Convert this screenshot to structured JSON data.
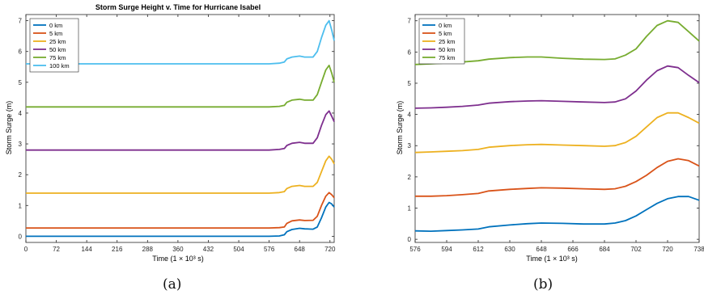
{
  "captions": [
    "(a)",
    "(b)"
  ],
  "chart_data": [
    {
      "type": "line",
      "title": "Storm Surge Height v. Time for Hurricane Isabel",
      "xlabel": "Time (1 × 10³ s)",
      "ylabel": "Storm Surge (m)",
      "xlim": [
        0,
        730
      ],
      "ylim": [
        -0.2,
        7.2
      ],
      "xticks": [
        0,
        72,
        144,
        216,
        288,
        360,
        432,
        504,
        576,
        648,
        720
      ],
      "yticks": [
        0,
        1,
        2,
        3,
        4,
        5,
        6,
        7
      ],
      "grid": false,
      "legend_position": "top-left",
      "series": [
        {
          "name": "0 km",
          "color": "#0072BD",
          "points": [
            [
              0,
              0
            ],
            [
              72,
              0
            ],
            [
              144,
              0
            ],
            [
              216,
              0
            ],
            [
              288,
              0
            ],
            [
              360,
              0
            ],
            [
              432,
              0
            ],
            [
              504,
              0
            ],
            [
              576,
              0
            ],
            [
              600,
              0.01
            ],
            [
              612,
              0.05
            ],
            [
              618,
              0.15
            ],
            [
              630,
              0.22
            ],
            [
              648,
              0.26
            ],
            [
              660,
              0.24
            ],
            [
              680,
              0.23
            ],
            [
              690,
              0.3
            ],
            [
              700,
              0.6
            ],
            [
              710,
              0.95
            ],
            [
              718,
              1.1
            ],
            [
              724,
              1.05
            ],
            [
              730,
              0.95
            ]
          ]
        },
        {
          "name": "5 km",
          "color": "#D95319",
          "points": [
            [
              0,
              0.27
            ],
            [
              72,
              0.27
            ],
            [
              144,
              0.27
            ],
            [
              216,
              0.27
            ],
            [
              288,
              0.27
            ],
            [
              360,
              0.27
            ],
            [
              432,
              0.27
            ],
            [
              504,
              0.27
            ],
            [
              576,
              0.27
            ],
            [
              600,
              0.28
            ],
            [
              612,
              0.3
            ],
            [
              618,
              0.42
            ],
            [
              630,
              0.5
            ],
            [
              648,
              0.53
            ],
            [
              660,
              0.51
            ],
            [
              680,
              0.52
            ],
            [
              690,
              0.65
            ],
            [
              700,
              1.0
            ],
            [
              710,
              1.3
            ],
            [
              718,
              1.42
            ],
            [
              724,
              1.35
            ],
            [
              730,
              1.25
            ]
          ]
        },
        {
          "name": "25 km",
          "color": "#EDB120",
          "points": [
            [
              0,
              1.4
            ],
            [
              72,
              1.4
            ],
            [
              144,
              1.4
            ],
            [
              216,
              1.4
            ],
            [
              288,
              1.4
            ],
            [
              360,
              1.4
            ],
            [
              432,
              1.4
            ],
            [
              504,
              1.4
            ],
            [
              576,
              1.4
            ],
            [
              600,
              1.42
            ],
            [
              612,
              1.45
            ],
            [
              618,
              1.55
            ],
            [
              630,
              1.62
            ],
            [
              648,
              1.65
            ],
            [
              660,
              1.62
            ],
            [
              680,
              1.62
            ],
            [
              690,
              1.75
            ],
            [
              700,
              2.1
            ],
            [
              710,
              2.45
            ],
            [
              718,
              2.6
            ],
            [
              724,
              2.5
            ],
            [
              730,
              2.35
            ]
          ]
        },
        {
          "name": "50 km",
          "color": "#7E2F8E",
          "points": [
            [
              0,
              2.8
            ],
            [
              72,
              2.8
            ],
            [
              144,
              2.8
            ],
            [
              216,
              2.8
            ],
            [
              288,
              2.8
            ],
            [
              360,
              2.8
            ],
            [
              432,
              2.8
            ],
            [
              504,
              2.8
            ],
            [
              576,
              2.8
            ],
            [
              600,
              2.82
            ],
            [
              612,
              2.85
            ],
            [
              618,
              2.95
            ],
            [
              630,
              3.02
            ],
            [
              648,
              3.05
            ],
            [
              660,
              3.02
            ],
            [
              680,
              3.02
            ],
            [
              690,
              3.2
            ],
            [
              700,
              3.6
            ],
            [
              710,
              3.95
            ],
            [
              718,
              4.07
            ],
            [
              724,
              3.9
            ],
            [
              730,
              3.72
            ]
          ]
        },
        {
          "name": "75 km",
          "color": "#77AC30",
          "points": [
            [
              0,
              4.2
            ],
            [
              72,
              4.2
            ],
            [
              144,
              4.2
            ],
            [
              216,
              4.2
            ],
            [
              288,
              4.2
            ],
            [
              360,
              4.2
            ],
            [
              432,
              4.2
            ],
            [
              504,
              4.2
            ],
            [
              576,
              4.2
            ],
            [
              600,
              4.22
            ],
            [
              612,
              4.25
            ],
            [
              618,
              4.35
            ],
            [
              630,
              4.42
            ],
            [
              648,
              4.45
            ],
            [
              660,
              4.42
            ],
            [
              680,
              4.42
            ],
            [
              690,
              4.6
            ],
            [
              700,
              5.0
            ],
            [
              710,
              5.4
            ],
            [
              718,
              5.55
            ],
            [
              724,
              5.3
            ],
            [
              730,
              5.0
            ]
          ]
        },
        {
          "name": "100 km",
          "color": "#4DBEEE",
          "points": [
            [
              0,
              5.6
            ],
            [
              72,
              5.6
            ],
            [
              144,
              5.6
            ],
            [
              216,
              5.6
            ],
            [
              288,
              5.6
            ],
            [
              360,
              5.6
            ],
            [
              432,
              5.6
            ],
            [
              504,
              5.6
            ],
            [
              576,
              5.6
            ],
            [
              600,
              5.62
            ],
            [
              612,
              5.66
            ],
            [
              618,
              5.76
            ],
            [
              630,
              5.82
            ],
            [
              648,
              5.85
            ],
            [
              660,
              5.82
            ],
            [
              680,
              5.82
            ],
            [
              690,
              6.0
            ],
            [
              700,
              6.45
            ],
            [
              710,
              6.85
            ],
            [
              718,
              7.0
            ],
            [
              724,
              6.7
            ],
            [
              730,
              6.35
            ]
          ]
        }
      ]
    },
    {
      "type": "line",
      "title": "",
      "xlabel": "Time (1 × 10³ s)",
      "ylabel": "Storm Surge (m)",
      "xlim": [
        576,
        738
      ],
      "ylim": [
        -0.1,
        7.2
      ],
      "xticks": [
        576,
        594,
        612,
        630,
        648,
        666,
        684,
        702,
        720,
        738
      ],
      "yticks": [
        0,
        1,
        2,
        3,
        4,
        5,
        6,
        7
      ],
      "grid": false,
      "legend_position": "top-left",
      "series": [
        {
          "name": "0 km",
          "color": "#0072BD",
          "points": [
            [
              576,
              0.27
            ],
            [
              585,
              0.26
            ],
            [
              594,
              0.28
            ],
            [
              603,
              0.3
            ],
            [
              612,
              0.33
            ],
            [
              618,
              0.4
            ],
            [
              630,
              0.46
            ],
            [
              640,
              0.5
            ],
            [
              648,
              0.52
            ],
            [
              660,
              0.51
            ],
            [
              672,
              0.49
            ],
            [
              684,
              0.49
            ],
            [
              690,
              0.52
            ],
            [
              696,
              0.6
            ],
            [
              702,
              0.75
            ],
            [
              708,
              0.95
            ],
            [
              714,
              1.15
            ],
            [
              720,
              1.3
            ],
            [
              726,
              1.37
            ],
            [
              732,
              1.37
            ],
            [
              738,
              1.25
            ]
          ]
        },
        {
          "name": "5 km",
          "color": "#D95319",
          "points": [
            [
              576,
              1.38
            ],
            [
              585,
              1.38
            ],
            [
              594,
              1.4
            ],
            [
              603,
              1.43
            ],
            [
              612,
              1.47
            ],
            [
              618,
              1.55
            ],
            [
              630,
              1.6
            ],
            [
              640,
              1.63
            ],
            [
              648,
              1.65
            ],
            [
              660,
              1.64
            ],
            [
              672,
              1.62
            ],
            [
              684,
              1.6
            ],
            [
              690,
              1.62
            ],
            [
              696,
              1.7
            ],
            [
              702,
              1.85
            ],
            [
              708,
              2.05
            ],
            [
              714,
              2.3
            ],
            [
              720,
              2.5
            ],
            [
              726,
              2.58
            ],
            [
              732,
              2.52
            ],
            [
              738,
              2.35
            ]
          ]
        },
        {
          "name": "25 km",
          "color": "#EDB120",
          "points": [
            [
              576,
              2.78
            ],
            [
              585,
              2.8
            ],
            [
              594,
              2.82
            ],
            [
              603,
              2.84
            ],
            [
              612,
              2.88
            ],
            [
              618,
              2.95
            ],
            [
              630,
              3.0
            ],
            [
              640,
              3.03
            ],
            [
              648,
              3.04
            ],
            [
              660,
              3.02
            ],
            [
              672,
              3.0
            ],
            [
              684,
              2.98
            ],
            [
              690,
              3.0
            ],
            [
              696,
              3.1
            ],
            [
              702,
              3.3
            ],
            [
              708,
              3.6
            ],
            [
              714,
              3.9
            ],
            [
              720,
              4.05
            ],
            [
              726,
              4.05
            ],
            [
              732,
              3.9
            ],
            [
              738,
              3.72
            ]
          ]
        },
        {
          "name": "50 km",
          "color": "#7E2F8E",
          "points": [
            [
              576,
              4.2
            ],
            [
              585,
              4.21
            ],
            [
              594,
              4.23
            ],
            [
              603,
              4.26
            ],
            [
              612,
              4.3
            ],
            [
              618,
              4.36
            ],
            [
              630,
              4.41
            ],
            [
              640,
              4.43
            ],
            [
              648,
              4.44
            ],
            [
              660,
              4.42
            ],
            [
              672,
              4.4
            ],
            [
              684,
              4.38
            ],
            [
              690,
              4.4
            ],
            [
              696,
              4.5
            ],
            [
              702,
              4.75
            ],
            [
              708,
              5.1
            ],
            [
              714,
              5.4
            ],
            [
              720,
              5.55
            ],
            [
              726,
              5.5
            ],
            [
              732,
              5.25
            ],
            [
              738,
              5.02
            ]
          ]
        },
        {
          "name": "75 km",
          "color": "#77AC30",
          "points": [
            [
              576,
              5.6
            ],
            [
              585,
              5.62
            ],
            [
              594,
              5.65
            ],
            [
              603,
              5.68
            ],
            [
              612,
              5.72
            ],
            [
              618,
              5.77
            ],
            [
              630,
              5.82
            ],
            [
              640,
              5.84
            ],
            [
              648,
              5.84
            ],
            [
              660,
              5.8
            ],
            [
              672,
              5.77
            ],
            [
              684,
              5.76
            ],
            [
              690,
              5.78
            ],
            [
              696,
              5.9
            ],
            [
              702,
              6.1
            ],
            [
              708,
              6.5
            ],
            [
              714,
              6.85
            ],
            [
              720,
              7.0
            ],
            [
              726,
              6.95
            ],
            [
              732,
              6.65
            ],
            [
              738,
              6.35
            ]
          ]
        }
      ]
    }
  ]
}
